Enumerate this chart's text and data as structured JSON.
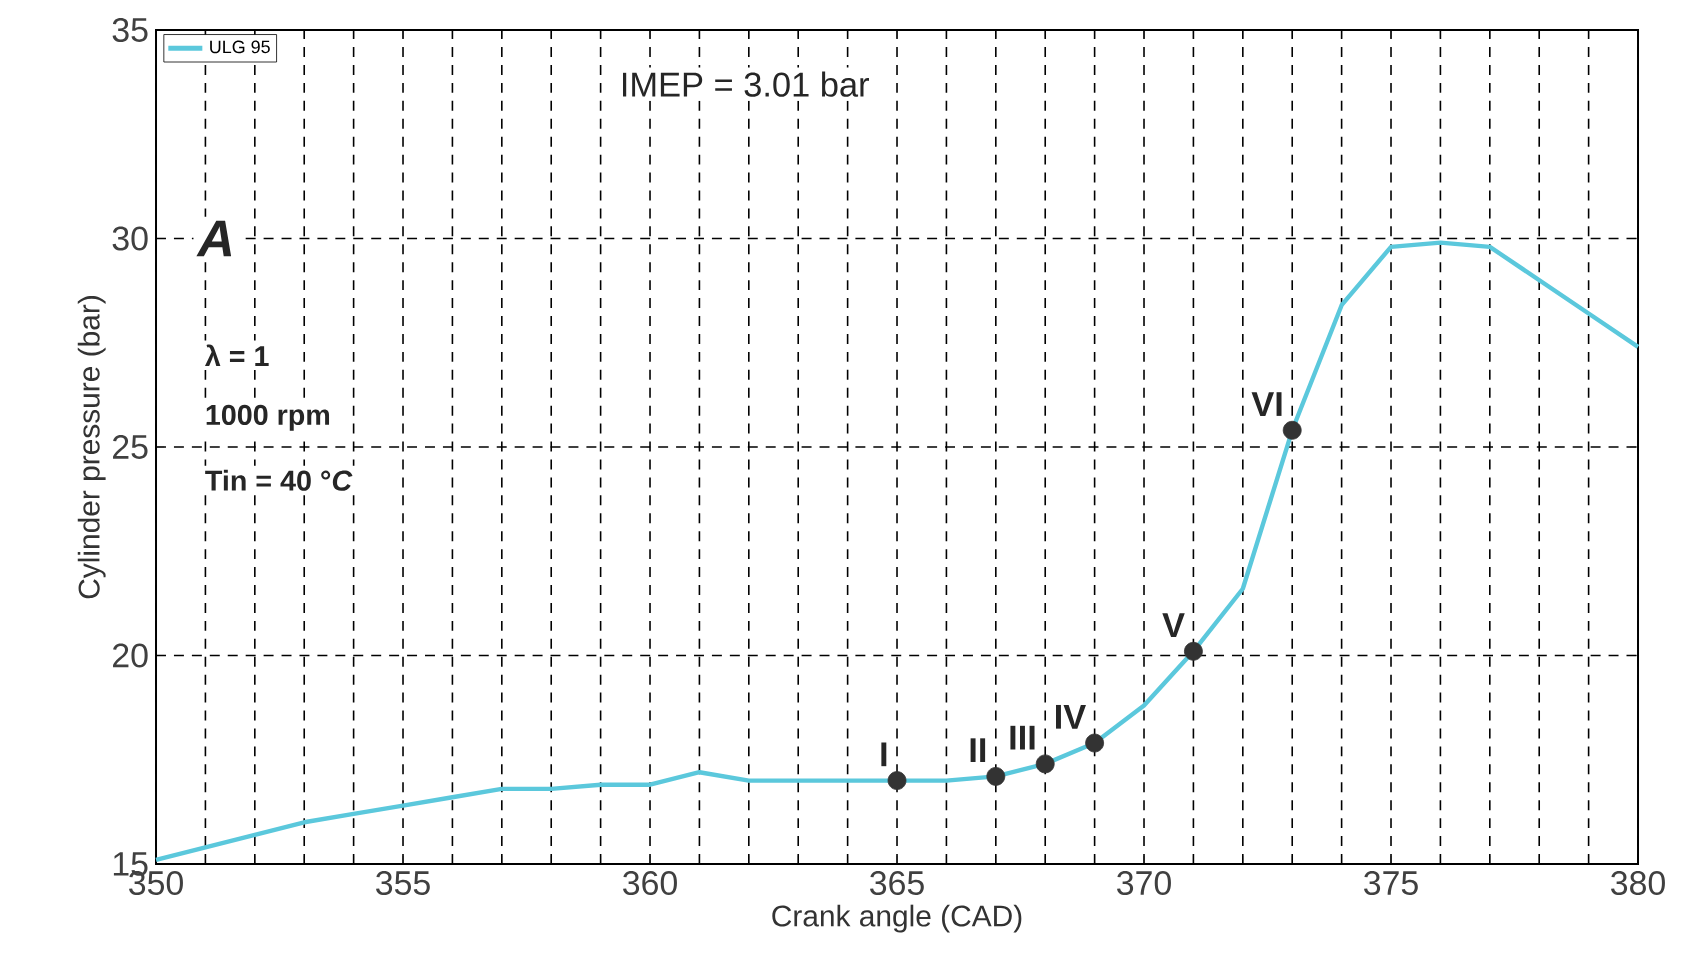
{
  "chart_data": {
    "type": "line",
    "xlabel": "Crank angle (CAD)",
    "ylabel": "Cylinder pressure (bar)",
    "xlim": [
      350,
      380
    ],
    "ylim": [
      15,
      35
    ],
    "xticks": [
      350,
      {
        "value": 351,
        "label": null
      },
      {
        "value": 352,
        "label": null
      },
      {
        "value": 353,
        "label": null
      },
      {
        "value": 354,
        "label": null
      },
      355,
      {
        "value": 356,
        "label": null
      },
      {
        "value": 357,
        "label": null
      },
      {
        "value": 358,
        "label": null
      },
      {
        "value": 359,
        "label": null
      },
      360,
      {
        "value": 361,
        "label": null
      },
      {
        "value": 362,
        "label": null
      },
      {
        "value": 363,
        "label": null
      },
      {
        "value": 364,
        "label": null
      },
      365,
      {
        "value": 366,
        "label": null
      },
      {
        "value": 367,
        "label": null
      },
      {
        "value": 368,
        "label": null
      },
      {
        "value": 369,
        "label": null
      },
      370,
      {
        "value": 371,
        "label": null
      },
      {
        "value": 372,
        "label": null
      },
      {
        "value": 373,
        "label": null
      },
      {
        "value": 374,
        "label": null
      },
      375,
      {
        "value": 376,
        "label": null
      },
      {
        "value": 377,
        "label": null
      },
      {
        "value": 378,
        "label": null
      },
      {
        "value": 379,
        "label": null
      },
      380
    ],
    "yticks": [
      15,
      20,
      25,
      30,
      35
    ],
    "grid": true,
    "legend": "top left",
    "series": [
      {
        "name": "ULG 95",
        "color": "#5bc8dc",
        "marker": "none",
        "x": [
          350,
          351,
          352,
          353,
          354,
          355,
          356,
          357,
          358,
          359,
          360,
          361,
          362,
          363,
          364,
          365,
          366,
          367,
          368,
          369,
          370,
          371,
          372,
          373,
          374,
          375,
          376,
          377,
          378,
          379,
          380
        ],
        "values": [
          15.1,
          15.4,
          15.7,
          16.0,
          16.2,
          16.4,
          16.6,
          16.8,
          16.8,
          16.9,
          16.9,
          17.2,
          17.0,
          17.0,
          17.0,
          17.0,
          17.0,
          17.1,
          17.4,
          17.9,
          18.8,
          20.1,
          21.6,
          25.4,
          28.4,
          29.8,
          29.9,
          29.8,
          29.0,
          28.2,
          27.4
        ]
      },
      {
        "type": "scatter",
        "color": "#333333",
        "marker": "circle",
        "x": [
          365,
          367,
          368,
          369,
          371,
          373
        ],
        "values": [
          17.0,
          17.1,
          17.4,
          17.9,
          20.1,
          25.4
        ]
      }
    ],
    "annotations": [
      "IMEP = 3.01 bar",
      "**A**",
      "λ = 1",
      "1000 rpm",
      "Tin = 40 °*C*",
      {
        "text": "I",
        "x": 365,
        "y": 17.0
      },
      {
        "text": "II",
        "x": 367,
        "y": 17.1
      },
      {
        "text": "III",
        "x": 368,
        "y": 17.4
      },
      {
        "text": "IV",
        "x": 369,
        "y": 17.9
      },
      {
        "text": "V",
        "x": 371,
        "y": 20.1
      },
      {
        "text": "VI",
        "x": 373,
        "y": 25.4
      }
    ]
  }
}
